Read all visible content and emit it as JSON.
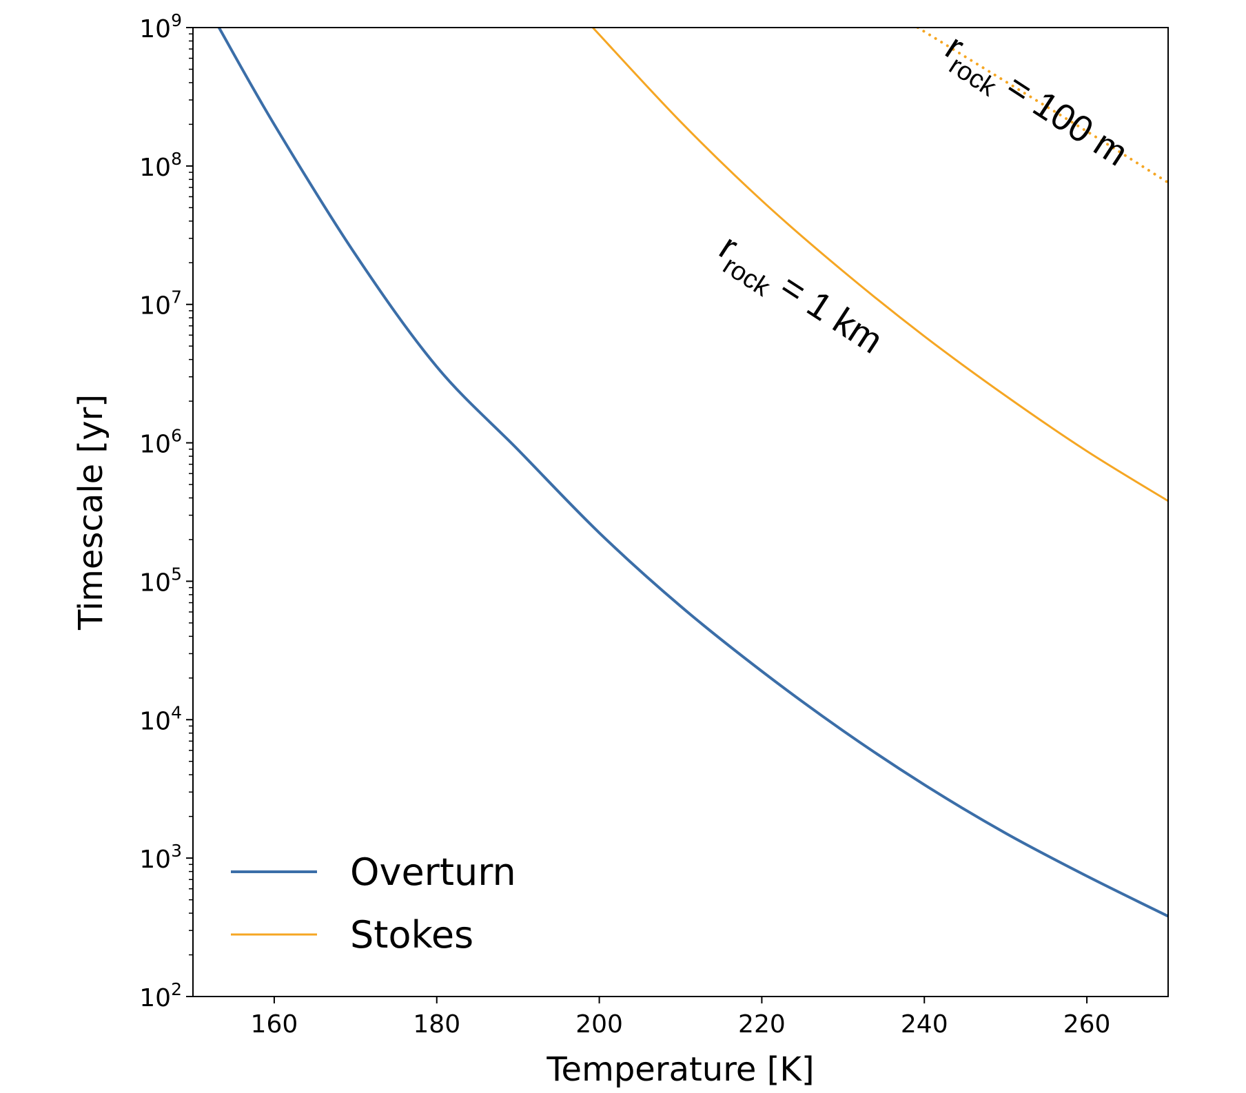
{
  "chart_data": {
    "type": "line",
    "title": "",
    "xlabel": "Temperature [K]",
    "ylabel": "Timescale [yr]",
    "xlim": [
      150,
      270
    ],
    "ylim_log10": [
      2,
      9
    ],
    "yscale": "log",
    "x_ticks": [
      160,
      180,
      200,
      220,
      240,
      260
    ],
    "x_tick_labels": [
      "160",
      "180",
      "200",
      "220",
      "240",
      "260"
    ],
    "y_ticks_log10": [
      2,
      3,
      4,
      5,
      6,
      7,
      8,
      9
    ],
    "y_tick_labels": [
      {
        "base": "10",
        "exp": "2"
      },
      {
        "base": "10",
        "exp": "3"
      },
      {
        "base": "10",
        "exp": "4"
      },
      {
        "base": "10",
        "exp": "5"
      },
      {
        "base": "10",
        "exp": "6"
      },
      {
        "base": "10",
        "exp": "7"
      },
      {
        "base": "10",
        "exp": "8"
      },
      {
        "base": "10",
        "exp": "9"
      }
    ],
    "legend_position": "lower-left",
    "series": [
      {
        "name": "Overturn",
        "color": "#3b6ea8",
        "style": "solid",
        "x": [
          153.2,
          160,
          170,
          180,
          190,
          200,
          210,
          220,
          230,
          240,
          250,
          260,
          270
        ],
        "y_log10": [
          9.0,
          8.3,
          7.36,
          6.55,
          5.95,
          5.35,
          4.82,
          4.35,
          3.92,
          3.53,
          3.18,
          2.87,
          2.58
        ]
      },
      {
        "name": "Stokes",
        "color": "#f5a623",
        "style": "solid",
        "x": [
          199.2,
          210,
          220,
          230,
          240,
          250,
          260,
          270
        ],
        "y_log10": [
          9.0,
          8.32,
          7.75,
          7.24,
          6.77,
          6.34,
          5.94,
          5.58
        ]
      },
      {
        "name": "Stokes (r_rock = 100 m)",
        "color": "#f5a623",
        "style": "dotted",
        "in_legend": false,
        "x": [
          239.2,
          250,
          260,
          270
        ],
        "y_log10": [
          9.0,
          8.61,
          8.25,
          7.88
        ]
      }
    ],
    "annotations": [
      {
        "main": "r",
        "sub": "rock",
        "rest": " = 1 km",
        "x": 224,
        "y_log10": 7.0,
        "angle_deg": 33
      },
      {
        "main": "r",
        "sub": "rock",
        "rest": " = 100 m",
        "x": 253,
        "y_log10": 8.4,
        "angle_deg": 33
      }
    ]
  }
}
